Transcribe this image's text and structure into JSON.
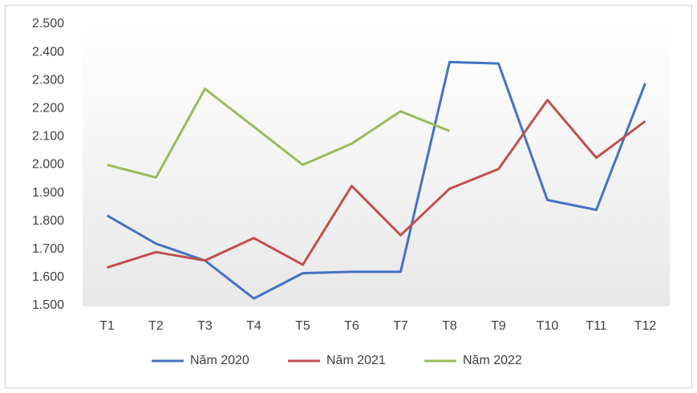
{
  "chart_data": {
    "type": "line",
    "categories": [
      "T1",
      "T2",
      "T3",
      "T4",
      "T5",
      "T6",
      "T7",
      "T8",
      "T9",
      "T10",
      "T11",
      "T12"
    ],
    "series": [
      {
        "name": "Năm 2020",
        "color": "#4472c4",
        "values": [
          1820,
          1720,
          1660,
          1525,
          1615,
          1620,
          1620,
          2365,
          2360,
          1875,
          1840,
          2290
        ]
      },
      {
        "name": "Năm 2021",
        "color": "#c0504d",
        "values": [
          1635,
          1690,
          1660,
          1740,
          1645,
          1925,
          1750,
          1915,
          1985,
          2230,
          2025,
          2155
        ]
      },
      {
        "name": "Năm 2022",
        "color": "#9bbb59",
        "values": [
          2000,
          1955,
          2270,
          2135,
          2000,
          2075,
          2190,
          2120,
          null,
          null,
          null,
          null
        ]
      }
    ],
    "ylim": [
      1500,
      2500
    ],
    "yticks": [
      {
        "value": 1500,
        "label": "1.500"
      },
      {
        "value": 1600,
        "label": "1.600"
      },
      {
        "value": 1700,
        "label": "1.700"
      },
      {
        "value": 1800,
        "label": "1.800"
      },
      {
        "value": 1900,
        "label": "1.900"
      },
      {
        "value": 2000,
        "label": "2.000"
      },
      {
        "value": 2100,
        "label": "2.100"
      },
      {
        "value": 2200,
        "label": "2.200"
      },
      {
        "value": 2300,
        "label": "2.300"
      },
      {
        "value": 2400,
        "label": "2.400"
      },
      {
        "value": 2500,
        "label": "2.500"
      }
    ],
    "legend": "bottom"
  }
}
